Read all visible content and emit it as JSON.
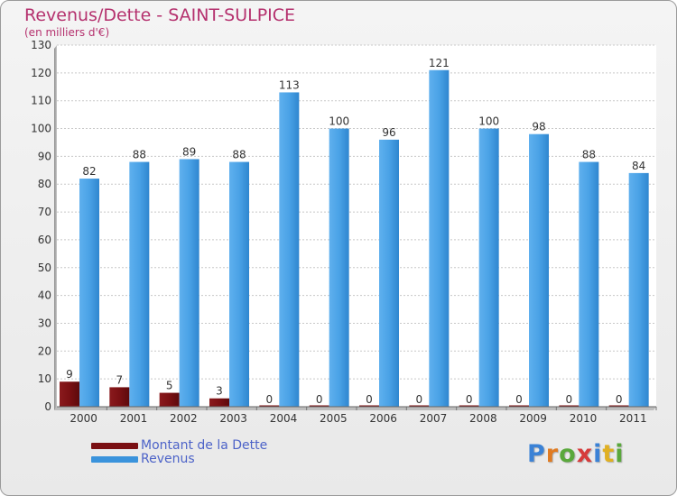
{
  "chart_data": {
    "type": "bar",
    "title": "Revenus/Dette - SAINT-SULPICE",
    "subtitle": "(en milliers d'€)",
    "xlabel": "",
    "ylabel": "",
    "ylim": [
      0,
      130
    ],
    "yticks": [
      0,
      10,
      20,
      30,
      40,
      50,
      60,
      70,
      80,
      90,
      100,
      110,
      120,
      130
    ],
    "grid": true,
    "categories": [
      "2000",
      "2001",
      "2002",
      "2003",
      "2004",
      "2005",
      "2006",
      "2007",
      "2008",
      "2009",
      "2010",
      "2011"
    ],
    "series": [
      {
        "name": "Montant de la Dette",
        "color": "#7a0f12",
        "values": [
          9,
          7,
          5,
          3,
          0,
          0,
          0,
          0,
          0,
          0,
          0,
          0
        ]
      },
      {
        "name": "Revenus",
        "color": "#3a93dc",
        "values": [
          82,
          88,
          89,
          88,
          113,
          100,
          96,
          121,
          100,
          98,
          88,
          84
        ]
      }
    ],
    "legend_position": "bottom-left"
  },
  "logo": {
    "letters": [
      "P",
      "r",
      "o",
      "x",
      "i",
      "t",
      "i"
    ],
    "colors": [
      "#3b82d6",
      "#e07b22",
      "#5aa83c",
      "#d63b3b",
      "#3b82d6",
      "#e0b022",
      "#5aa83c"
    ]
  }
}
